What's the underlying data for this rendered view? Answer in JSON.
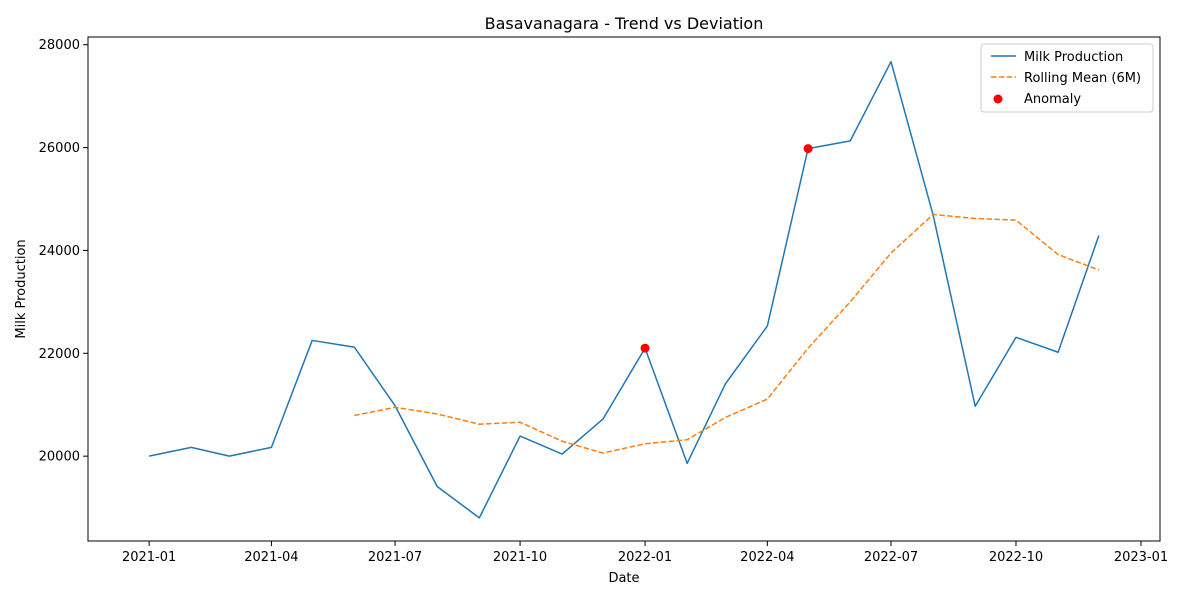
{
  "chart_data": {
    "type": "line",
    "title": "Basavanagara - Trend vs Deviation",
    "xlabel": "Date",
    "ylabel": "Milk Production",
    "x_ticks": [
      "2021-01",
      "2021-04",
      "2021-07",
      "2021-10",
      "2022-01",
      "2022-04",
      "2022-07",
      "2022-10",
      "2023-01"
    ],
    "y_ticks": [
      20000,
      22000,
      24000,
      26000,
      28000
    ],
    "xlim": [
      "2020-11-17",
      "2023-01-15"
    ],
    "ylim": [
      18350,
      28150
    ],
    "legend_position": "top-right",
    "grid": false,
    "series": [
      {
        "name": "Milk Production",
        "style": "solid",
        "color": "#1f77b4",
        "points": [
          {
            "x": "2021-01-01",
            "y": 20000
          },
          {
            "x": "2021-02-01",
            "y": 20170
          },
          {
            "x": "2021-03-01",
            "y": 20000
          },
          {
            "x": "2021-04-01",
            "y": 20170
          },
          {
            "x": "2021-05-01",
            "y": 22250
          },
          {
            "x": "2021-06-01",
            "y": 22120
          },
          {
            "x": "2021-07-01",
            "y": 20980
          },
          {
            "x": "2021-08-01",
            "y": 19410
          },
          {
            "x": "2021-09-01",
            "y": 18800
          },
          {
            "x": "2021-10-01",
            "y": 20390
          },
          {
            "x": "2021-11-01",
            "y": 20040
          },
          {
            "x": "2021-12-01",
            "y": 20720
          },
          {
            "x": "2022-01-01",
            "y": 22100
          },
          {
            "x": "2022-02-01",
            "y": 19860
          },
          {
            "x": "2022-03-01",
            "y": 21400
          },
          {
            "x": "2022-04-01",
            "y": 22530
          },
          {
            "x": "2022-05-01",
            "y": 25980
          },
          {
            "x": "2022-06-01",
            "y": 26130
          },
          {
            "x": "2022-07-01",
            "y": 27670
          },
          {
            "x": "2022-08-01",
            "y": 24690
          },
          {
            "x": "2022-09-01",
            "y": 20970
          },
          {
            "x": "2022-10-01",
            "y": 22310
          },
          {
            "x": "2022-11-01",
            "y": 22020
          },
          {
            "x": "2022-12-01",
            "y": 24290
          }
        ]
      },
      {
        "name": "Rolling Mean (6M)",
        "style": "dashed",
        "color": "#ff7f0e",
        "points": [
          {
            "x": "2021-06-01",
            "y": 20790
          },
          {
            "x": "2021-07-01",
            "y": 20950
          },
          {
            "x": "2021-08-01",
            "y": 20820
          },
          {
            "x": "2021-09-01",
            "y": 20620
          },
          {
            "x": "2021-10-01",
            "y": 20660
          },
          {
            "x": "2021-11-01",
            "y": 20290
          },
          {
            "x": "2021-12-01",
            "y": 20060
          },
          {
            "x": "2022-01-01",
            "y": 20240
          },
          {
            "x": "2022-02-01",
            "y": 20320
          },
          {
            "x": "2022-03-01",
            "y": 20750
          },
          {
            "x": "2022-04-01",
            "y": 21110
          },
          {
            "x": "2022-05-01",
            "y": 22100
          },
          {
            "x": "2022-06-01",
            "y": 23000
          },
          {
            "x": "2022-07-01",
            "y": 23950
          },
          {
            "x": "2022-08-01",
            "y": 24700
          },
          {
            "x": "2022-09-01",
            "y": 24620
          },
          {
            "x": "2022-10-01",
            "y": 24590
          },
          {
            "x": "2022-11-01",
            "y": 23920
          },
          {
            "x": "2022-12-01",
            "y": 23620
          }
        ]
      },
      {
        "name": "Anomaly",
        "style": "scatter",
        "color": "#ff0000",
        "points": [
          {
            "x": "2022-01-01",
            "y": 22100
          },
          {
            "x": "2022-05-01",
            "y": 25980
          }
        ]
      }
    ]
  }
}
